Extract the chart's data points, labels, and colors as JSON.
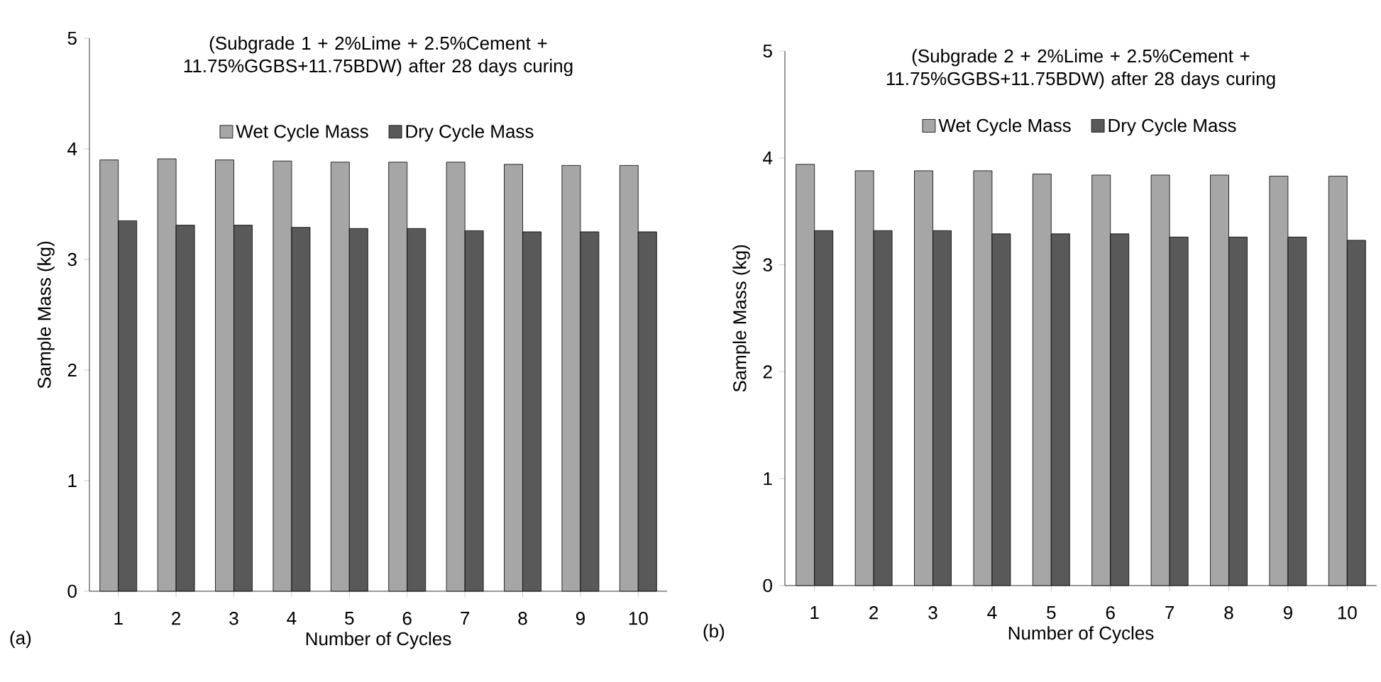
{
  "chart_data": [
    {
      "type": "bar",
      "title": "(Subgrade 1 + 2%Lime + 2.5%Cement + 11.75%GGBS+11.75BDW) after 28 days curing",
      "xlabel": "Number of Cycles",
      "ylabel": "Sample Mass (kg)",
      "categories": [
        "1",
        "2",
        "3",
        "4",
        "5",
        "6",
        "7",
        "8",
        "9",
        "10"
      ],
      "series": [
        {
          "name": "Wet Cycle Mass",
          "color": "#a6a6a6",
          "values": [
            3.9,
            3.91,
            3.9,
            3.89,
            3.88,
            3.88,
            3.88,
            3.86,
            3.85,
            3.85
          ]
        },
        {
          "name": "Dry Cycle Mass",
          "color": "#595959",
          "values": [
            3.35,
            3.31,
            3.31,
            3.29,
            3.28,
            3.28,
            3.26,
            3.25,
            3.25,
            3.25
          ]
        }
      ],
      "ylim": [
        0,
        5
      ],
      "yticks": [
        0,
        1,
        2,
        3,
        4,
        5
      ],
      "legend": "top",
      "annotations": [
        "(a)"
      ]
    },
    {
      "type": "bar",
      "title": "(Subgrade 2 + 2%Lime + 2.5%Cement + 11.75%GGBS+11.75BDW) after 28 days curing",
      "xlabel": "Number of Cycles",
      "ylabel": "Sample Mass (kg)",
      "categories": [
        "1",
        "2",
        "3",
        "4",
        "5",
        "6",
        "7",
        "8",
        "9",
        "10"
      ],
      "series": [
        {
          "name": "Wet Cycle Mass",
          "color": "#a6a6a6",
          "values": [
            3.94,
            3.88,
            3.88,
            3.88,
            3.85,
            3.84,
            3.84,
            3.84,
            3.83,
            3.83
          ]
        },
        {
          "name": "Dry Cycle Mass",
          "color": "#595959",
          "values": [
            3.32,
            3.32,
            3.32,
            3.29,
            3.29,
            3.29,
            3.26,
            3.26,
            3.26,
            3.23
          ]
        }
      ],
      "ylim": [
        0,
        5
      ],
      "yticks": [
        0,
        1,
        2,
        3,
        4,
        5
      ],
      "legend": "top",
      "annotations": [
        "(b)"
      ]
    }
  ]
}
